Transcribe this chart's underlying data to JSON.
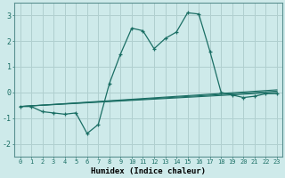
{
  "xlabel": "Humidex (Indice chaleur)",
  "background_color": "#ceeaea",
  "grid_color": "#b0cfcf",
  "line_color": "#1a6e64",
  "xlim": [
    -0.5,
    23.5
  ],
  "ylim": [
    -2.5,
    3.5
  ],
  "yticks": [
    -2,
    -1,
    0,
    1,
    2,
    3
  ],
  "xticks": [
    0,
    1,
    2,
    3,
    4,
    5,
    6,
    7,
    8,
    9,
    10,
    11,
    12,
    13,
    14,
    15,
    16,
    17,
    18,
    19,
    20,
    21,
    22,
    23
  ],
  "main_x": [
    0,
    1,
    2,
    3,
    4,
    5,
    6,
    7,
    8,
    9,
    10,
    11,
    12,
    13,
    14,
    15,
    16,
    17,
    18,
    19,
    20,
    21,
    22,
    23
  ],
  "main_y": [
    -0.55,
    -0.55,
    -0.75,
    -0.8,
    -0.85,
    -0.8,
    -1.6,
    -1.25,
    0.35,
    1.5,
    2.5,
    2.4,
    1.7,
    2.1,
    2.35,
    3.1,
    3.05,
    1.6,
    0.0,
    -0.1,
    -0.2,
    -0.15,
    -0.05,
    -0.05
  ],
  "ref_lines": [
    {
      "x": [
        0,
        23
      ],
      "y": [
        -0.55,
        0.1
      ]
    },
    {
      "x": [
        0,
        23
      ],
      "y": [
        -0.55,
        -0.0
      ]
    },
    {
      "x": [
        0,
        23
      ],
      "y": [
        -0.55,
        0.05
      ]
    }
  ]
}
